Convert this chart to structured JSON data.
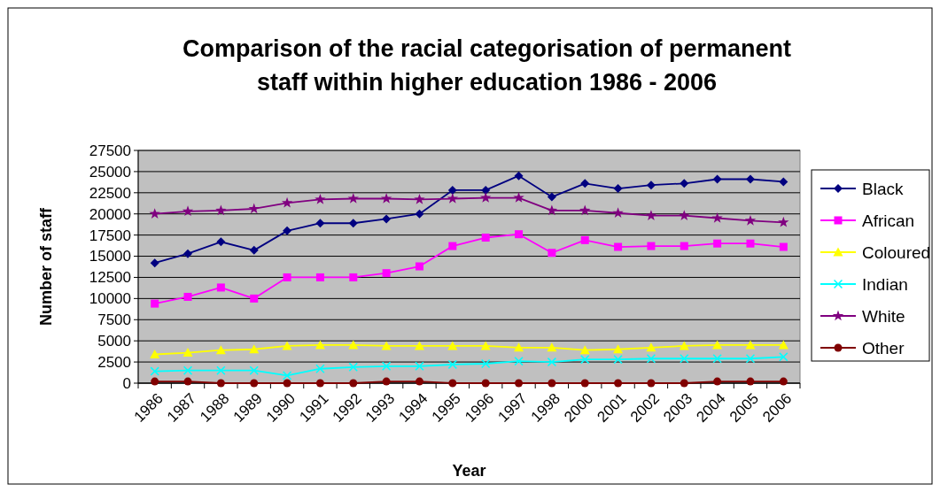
{
  "chart_data": {
    "type": "line",
    "title": "Comparison of the racial categorisation of permanent staff within higher education 1986 - 2006",
    "xlabel": "Year",
    "ylabel": "Number of staff",
    "categories": [
      "1986",
      "1987",
      "1988",
      "1989",
      "1990",
      "1991",
      "1992",
      "1993",
      "1994",
      "1995",
      "1996",
      "1997",
      "1998",
      "2000",
      "2001",
      "2002",
      "2003",
      "2004",
      "2005",
      "2006"
    ],
    "ylim": [
      0,
      27500
    ],
    "yticks": [
      0,
      2500,
      5000,
      7500,
      10000,
      12500,
      15000,
      17500,
      20000,
      22500,
      25000,
      27500
    ],
    "grid": "y",
    "legend": "right",
    "line_style": "solid",
    "series": [
      {
        "name": "Black",
        "color": "#000080",
        "marker": "diamond",
        "values": [
          14200,
          15300,
          16700,
          15700,
          18000,
          18900,
          18900,
          19400,
          20000,
          22800,
          22800,
          24500,
          22000,
          23600,
          23000,
          23400,
          23600,
          24100,
          24100,
          23800
        ]
      },
      {
        "name": "African",
        "color": "#ff00ff",
        "marker": "square",
        "values": [
          9400,
          10200,
          11300,
          10000,
          12500,
          12500,
          12500,
          13000,
          13800,
          16200,
          17200,
          17600,
          15400,
          16900,
          16100,
          16200,
          16200,
          16500,
          16500,
          16100
        ]
      },
      {
        "name": "Coloured",
        "color": "#ffff00",
        "marker": "triangle",
        "values": [
          3400,
          3600,
          3900,
          4000,
          4400,
          4500,
          4500,
          4400,
          4400,
          4400,
          4400,
          4200,
          4200,
          3900,
          4000,
          4200,
          4400,
          4500,
          4500,
          4500
        ]
      },
      {
        "name": "Indian",
        "color": "#00ffff",
        "marker": "cross",
        "values": [
          1400,
          1500,
          1500,
          1500,
          900,
          1700,
          1900,
          2000,
          2000,
          2200,
          2300,
          2600,
          2500,
          2800,
          2800,
          2900,
          2900,
          2900,
          2900,
          3100
        ]
      },
      {
        "name": "White",
        "color": "#800080",
        "marker": "star",
        "values": [
          20000,
          20300,
          20400,
          20600,
          21300,
          21700,
          21800,
          21800,
          21700,
          21800,
          21900,
          21900,
          20400,
          20400,
          20100,
          19800,
          19800,
          19500,
          19200,
          19000
        ]
      },
      {
        "name": "Other",
        "color": "#800000",
        "marker": "circle",
        "values": [
          200,
          200,
          0,
          0,
          0,
          0,
          0,
          200,
          200,
          0,
          0,
          0,
          0,
          0,
          0,
          0,
          0,
          200,
          200,
          200
        ]
      }
    ]
  }
}
